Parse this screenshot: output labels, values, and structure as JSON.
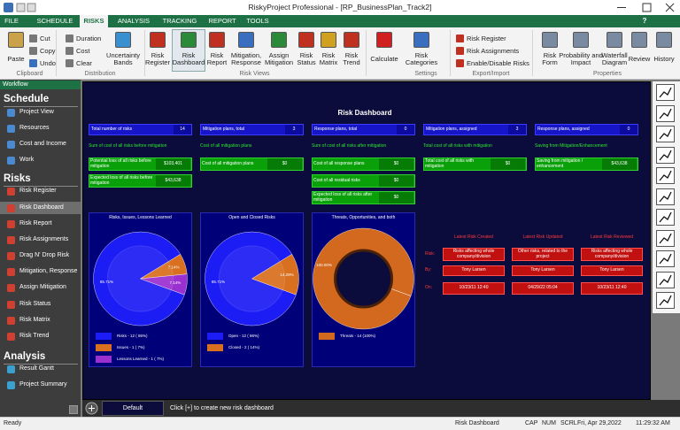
{
  "window": {
    "title": "RiskyProject Professional - [RP_BusinessPlan_Track2]"
  },
  "menu": {
    "tabs": [
      "FILE",
      "SCHEDULE",
      "RISKS",
      "ANALYSIS",
      "TRACKING",
      "REPORT",
      "TOOLS"
    ],
    "active": 2,
    "help": "?"
  },
  "ribbon": {
    "buttons": [
      "Paste",
      "Cut",
      "Copy",
      "Undo",
      "Duration",
      "Cost",
      "Clear",
      "Uncertainty Bands",
      "Risk Register",
      "Risk Dashboard",
      "Risk Report",
      "Mitigation, Response",
      "Assign Mitigation",
      "Risk Status",
      "Risk Matrix",
      "Risk Trend",
      "Calculate",
      "Risk Categories",
      "Risk Register",
      "Risk Assignments",
      "Enable/Disable Risks",
      "Risk Form",
      "Probability and Impact",
      "Waterfall Diagram",
      "Review",
      "History"
    ],
    "selected": 9,
    "groups": [
      "Clipboard",
      "Distribution",
      "Risk Views",
      "Settings",
      "Export/Import",
      "Properties"
    ]
  },
  "workflow": {
    "title": "Workflow",
    "sections": [
      {
        "title": "Schedule",
        "items": [
          "Project View",
          "Resources",
          "Cost and Income",
          "Work"
        ]
      },
      {
        "title": "Risks",
        "items": [
          "Risk Register",
          "Risk Dashboard",
          "Risk Report",
          "Risk Assignments",
          "Drag N' Drop Risk",
          "Mitigation, Response",
          "Assign Mitigation",
          "Risk Status",
          "Risk Matrix",
          "Risk Trend"
        ]
      },
      {
        "title": "Analysis",
        "items": [
          "Result Gantt",
          "Project Summary"
        ]
      }
    ],
    "selected": [
      1,
      1
    ]
  },
  "dashboard": {
    "title": "Risk Dashboard",
    "counts": [
      {
        "label": "Total number of risks",
        "value": 14
      },
      {
        "label": "Mitigation plans, total",
        "value": 3
      },
      {
        "label": "Response plans, total",
        "value": 0
      },
      {
        "label": "Mitigation plans, assigned",
        "value": 3
      },
      {
        "label": "Response plans, assigned",
        "value": 0
      }
    ],
    "cost_headings": [
      "Sum of cost of all risks before mitigation",
      "Cost of all mitigation plans",
      "Sum of cost of all risks after mitigation",
      "Total cost of all risks with mitigation",
      "Saving from Mitigation/Enhancement"
    ],
    "costs": [
      [
        {
          "label": "Potential loss of all risks before mitigation",
          "value": "$103,401"
        },
        {
          "label": "Expected loss of all risks before mitigation",
          "value": "$43,638"
        }
      ],
      [
        {
          "label": "Cost of all mitigation plans",
          "value": "$0"
        }
      ],
      [
        {
          "label": "Cost of all response plans",
          "value": "$0"
        },
        {
          "label": "Cost of all residual risks",
          "value": "$0"
        },
        {
          "label": "Expected loss of all risks after mitigation",
          "value": "$0"
        }
      ],
      [
        {
          "label": "Total cost of all risks with mitigation",
          "value": "$0"
        }
      ],
      [
        {
          "label": "Saving from mitigation / enhancement",
          "value": "$43,638"
        }
      ]
    ],
    "pies": [
      {
        "title": "Risks, Issues, Lessons Learned",
        "type": "pie",
        "values": [
          85.71,
          7.14,
          7.14
        ],
        "value_labels": [
          "85.71%",
          "7.14%",
          "7.14%"
        ],
        "legend": [
          "Risks - 12 ( 86%)",
          "Issues - 1 ( 7%)",
          "Lessons Learned - 1 ( 7%)"
        ],
        "colors": [
          "#1c1cf5",
          "#d9701f",
          "#9b30d0"
        ]
      },
      {
        "title": "Open and Closed Risks",
        "type": "pie",
        "values": [
          85.71,
          14.29
        ],
        "value_labels": [
          "85.71%",
          "14.29%"
        ],
        "legend": [
          "Open - 12 ( 86%)",
          "Closed - 2 ( 14%)"
        ],
        "colors": [
          "#1c1cf5",
          "#d9701f"
        ]
      },
      {
        "title": "Threats, Opportunities, and both",
        "type": "donut",
        "values": [
          100
        ],
        "value_labels": [
          "100.00%"
        ],
        "legend": [
          "Threats - 14 (100%)"
        ],
        "colors": [
          "#d2691e"
        ]
      }
    ],
    "latest": {
      "headers": [
        "Latest Risk Created",
        "Latest Risk Updated",
        "Latest Risk Reviewed"
      ],
      "row_labels": [
        "Risk:",
        "By:",
        "On:"
      ],
      "rows": [
        [
          "Risks affecting whole company/division",
          "Other risks, related to the project",
          "Risks affecting whole company/division"
        ],
        [
          "Tony Larsen",
          "Tony Larsen",
          "Tony Larsen"
        ],
        [
          "10/23/11 12:40",
          "04/29/22 05:04",
          "10/23/11 12:40"
        ]
      ]
    }
  },
  "tabs": {
    "items": [
      "Default"
    ],
    "hint": "Click [+] to create new risk dashboard"
  },
  "status": {
    "left": "Ready",
    "view": "Risk Dashboard",
    "indicators": [
      "CAP",
      "NUM",
      "SCRL",
      "Fri, Apr 29,2022",
      "11:29:32 AM"
    ]
  }
}
